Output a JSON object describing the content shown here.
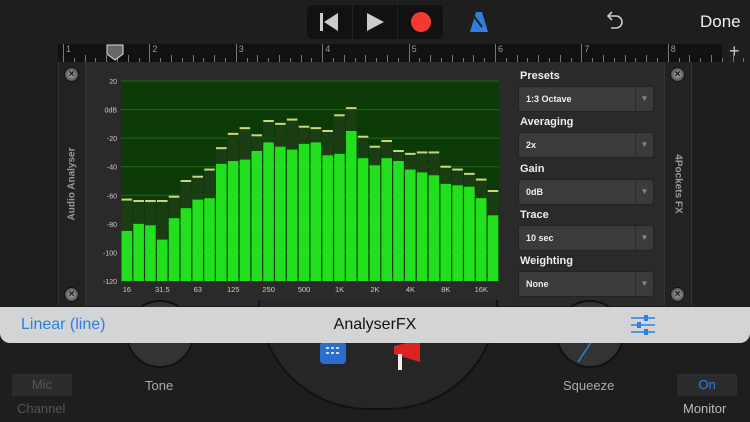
{
  "toolbar": {
    "done_label": "Done",
    "icons": [
      "skip-back-icon",
      "play-icon",
      "record-icon",
      "metronome-icon",
      "undo-icon"
    ],
    "record_color": "#f23a30",
    "metronome_color": "#2f7fe0"
  },
  "ruler": {
    "bars": [
      "1",
      "2",
      "3",
      "4",
      "5",
      "6",
      "7",
      "8"
    ],
    "add_label": "+"
  },
  "plugin": {
    "left_label": "Audio Analyser",
    "right_label": "4Pockets FX",
    "controls": [
      {
        "label": "Presets",
        "value": "1:3 Octave"
      },
      {
        "label": "Averaging",
        "value": "2x"
      },
      {
        "label": "Gain",
        "value": "0dB"
      },
      {
        "label": "Trace",
        "value": "10 sec"
      },
      {
        "label": "Weighting",
        "value": "None"
      }
    ]
  },
  "chart_data": {
    "type": "bar",
    "ylim": [
      -120,
      20
    ],
    "yticks": [
      "20",
      "0dB",
      "-20",
      "-40",
      "-60",
      "-80",
      "-100",
      "-120"
    ],
    "xtick_labels": [
      "16",
      "31.5",
      "63",
      "125",
      "250",
      "500",
      "1K",
      "2K",
      "4K",
      "8K",
      "16K"
    ],
    "grid": true,
    "bar_color": "#22e01e",
    "peak_color": "#c9d87a",
    "background": "#0b3a07",
    "series": [
      {
        "name": "level",
        "values": [
          -85,
          -80,
          -81,
          -91,
          -76,
          -69,
          -63,
          -62,
          -38,
          -36,
          -35,
          -29,
          -23,
          -26,
          -28,
          -24,
          -23,
          -32,
          -31,
          -15,
          -34,
          -39,
          -34,
          -36,
          -42,
          -44,
          -46,
          -52,
          -53,
          -54,
          -62,
          -74
        ]
      },
      {
        "name": "peak",
        "values": [
          -63,
          -64,
          -64,
          -64,
          -61,
          -50,
          -47,
          -42,
          -27,
          -17,
          -13,
          -18,
          -8,
          -10,
          -7,
          -12,
          -13,
          -15,
          -4,
          1,
          -19,
          -26,
          -22,
          -29,
          -31,
          -30,
          -30,
          -40,
          -42,
          -45,
          -49,
          -57
        ]
      }
    ]
  },
  "sheet": {
    "left_label": "Linear (line)",
    "title": "AnalyserFX",
    "settings_icon": "sliders-icon"
  },
  "bottom": {
    "mic_label": "Mic",
    "channel_label": "Channel",
    "tone_label": "Tone",
    "squeeze_label": "Squeeze",
    "on_label": "On",
    "monitor_label": "Monitor"
  }
}
